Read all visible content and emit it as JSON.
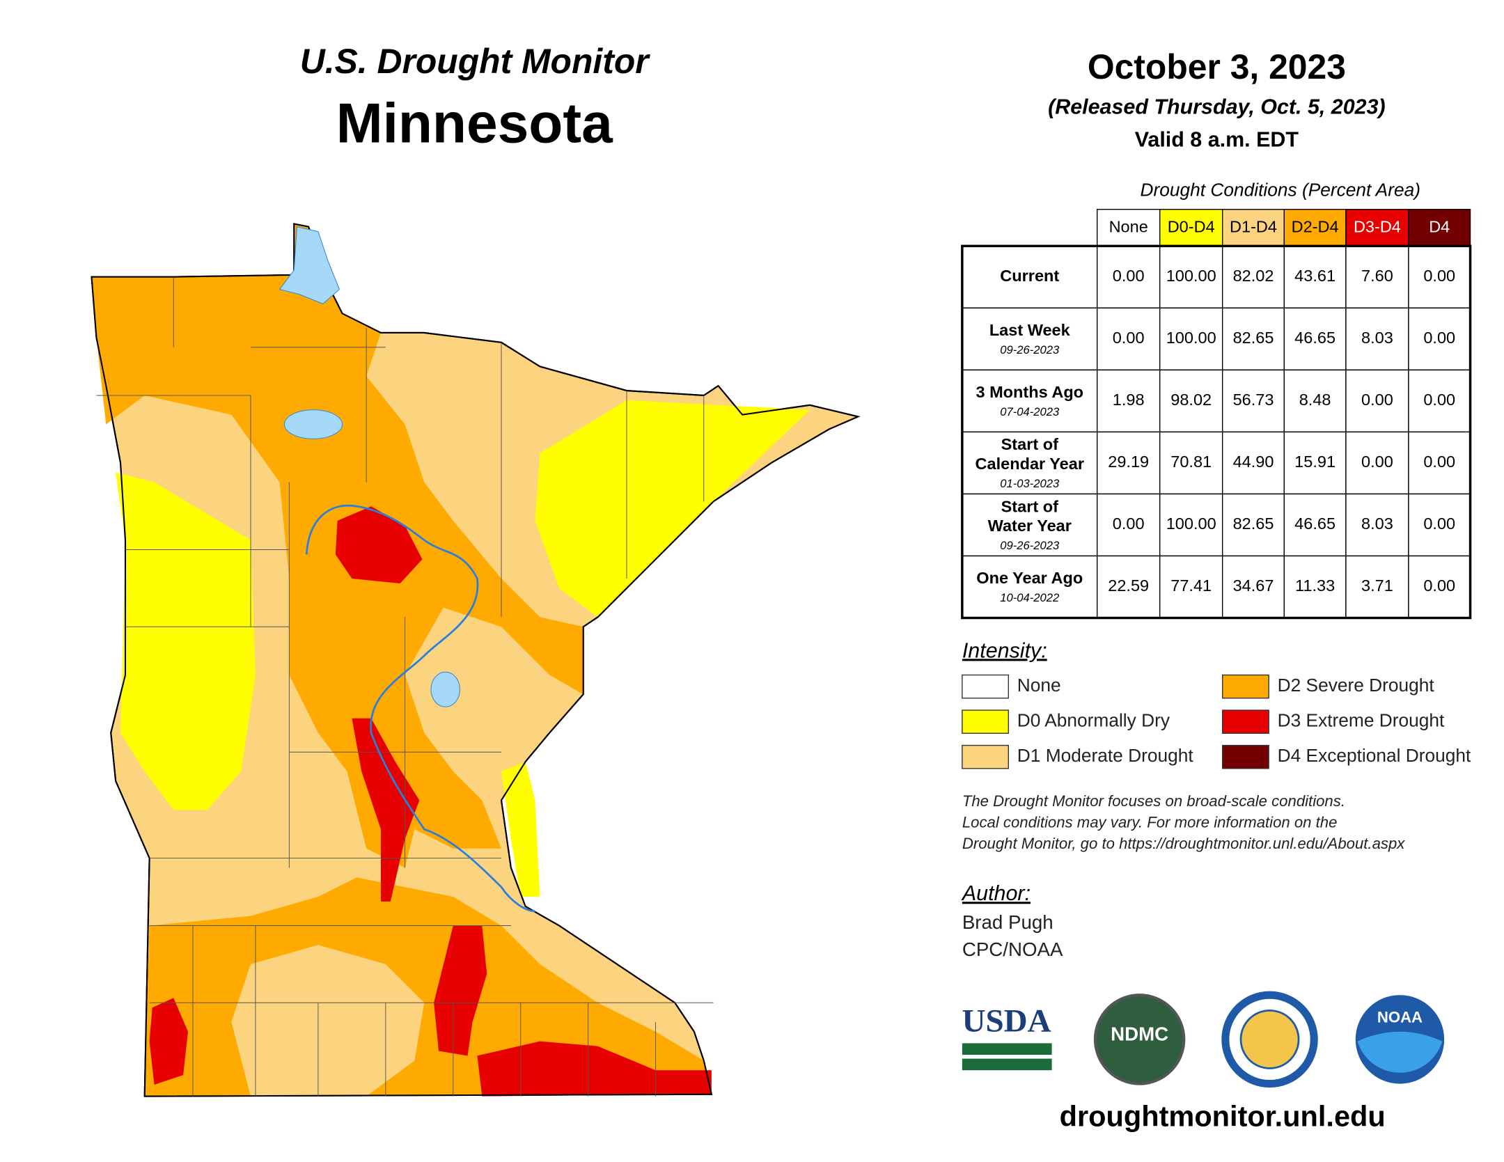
{
  "header": {
    "title": "U.S. Drought Monitor",
    "state": "Minnesota",
    "date": "October 3, 2023",
    "released": "(Released Thursday, Oct. 5, 2023)",
    "valid": "Valid 8 a.m. EDT"
  },
  "table": {
    "caption": "Drought Conditions (Percent Area)",
    "columns": [
      {
        "label": "None",
        "color": "#ffffff",
        "text_color": "#000000"
      },
      {
        "label": "D0-D4",
        "color": "#ffff00",
        "text_color": "#000000"
      },
      {
        "label": "D1-D4",
        "color": "#fcd37f",
        "text_color": "#000000"
      },
      {
        "label": "D2-D4",
        "color": "#ffaa00",
        "text_color": "#000000"
      },
      {
        "label": "D3-D4",
        "color": "#e60000",
        "text_color": "#ffffff"
      },
      {
        "label": "D4",
        "color": "#730000",
        "text_color": "#ffffff"
      }
    ],
    "rows": [
      {
        "label": [
          "Current"
        ],
        "values": [
          "0.00",
          "100.00",
          "82.02",
          "43.61",
          "7.60",
          "0.00"
        ]
      },
      {
        "label": [
          "Last Week"
        ],
        "date": "09-26-2023",
        "values": [
          "0.00",
          "100.00",
          "82.65",
          "46.65",
          "8.03",
          "0.00"
        ]
      },
      {
        "label": [
          "3 Months Ago"
        ],
        "date": "07-04-2023",
        "values": [
          "1.98",
          "98.02",
          "56.73",
          "8.48",
          "0.00",
          "0.00"
        ]
      },
      {
        "label": [
          "Start of",
          "Calendar Year"
        ],
        "date": "01-03-2023",
        "values": [
          "29.19",
          "70.81",
          "44.90",
          "15.91",
          "0.00",
          "0.00"
        ]
      },
      {
        "label": [
          "Start of",
          "Water Year"
        ],
        "date": "09-26-2023",
        "values": [
          "0.00",
          "100.00",
          "82.65",
          "46.65",
          "8.03",
          "0.00"
        ]
      },
      {
        "label": [
          "One Year Ago"
        ],
        "date": "10-04-2022",
        "values": [
          "22.59",
          "77.41",
          "34.67",
          "11.33",
          "3.71",
          "0.00"
        ]
      }
    ]
  },
  "legend": {
    "title": "Intensity:",
    "items": [
      {
        "label": "None",
        "color": "#ffffff"
      },
      {
        "label": "D0 Abnormally Dry",
        "color": "#ffff00"
      },
      {
        "label": "D1 Moderate Drought",
        "color": "#fcd37f"
      },
      {
        "label": "D2 Severe Drought",
        "color": "#ffaa00"
      },
      {
        "label": "D3 Extreme Drought",
        "color": "#e60000"
      },
      {
        "label": "D4 Exceptional Drought",
        "color": "#730000"
      }
    ]
  },
  "note": [
    "The Drought Monitor focuses on broad-scale conditions.",
    "Local conditions may vary. For more information on the",
    "Drought Monitor, go to https://droughtmonitor.unl.edu/About.aspx"
  ],
  "author": {
    "title": "Author:",
    "lines": [
      "Brad Pugh",
      "CPC/NOAA"
    ]
  },
  "logos": [
    "USDA",
    "NDMC",
    "NOAA"
  ],
  "url": "droughtmonitor.unl.edu"
}
